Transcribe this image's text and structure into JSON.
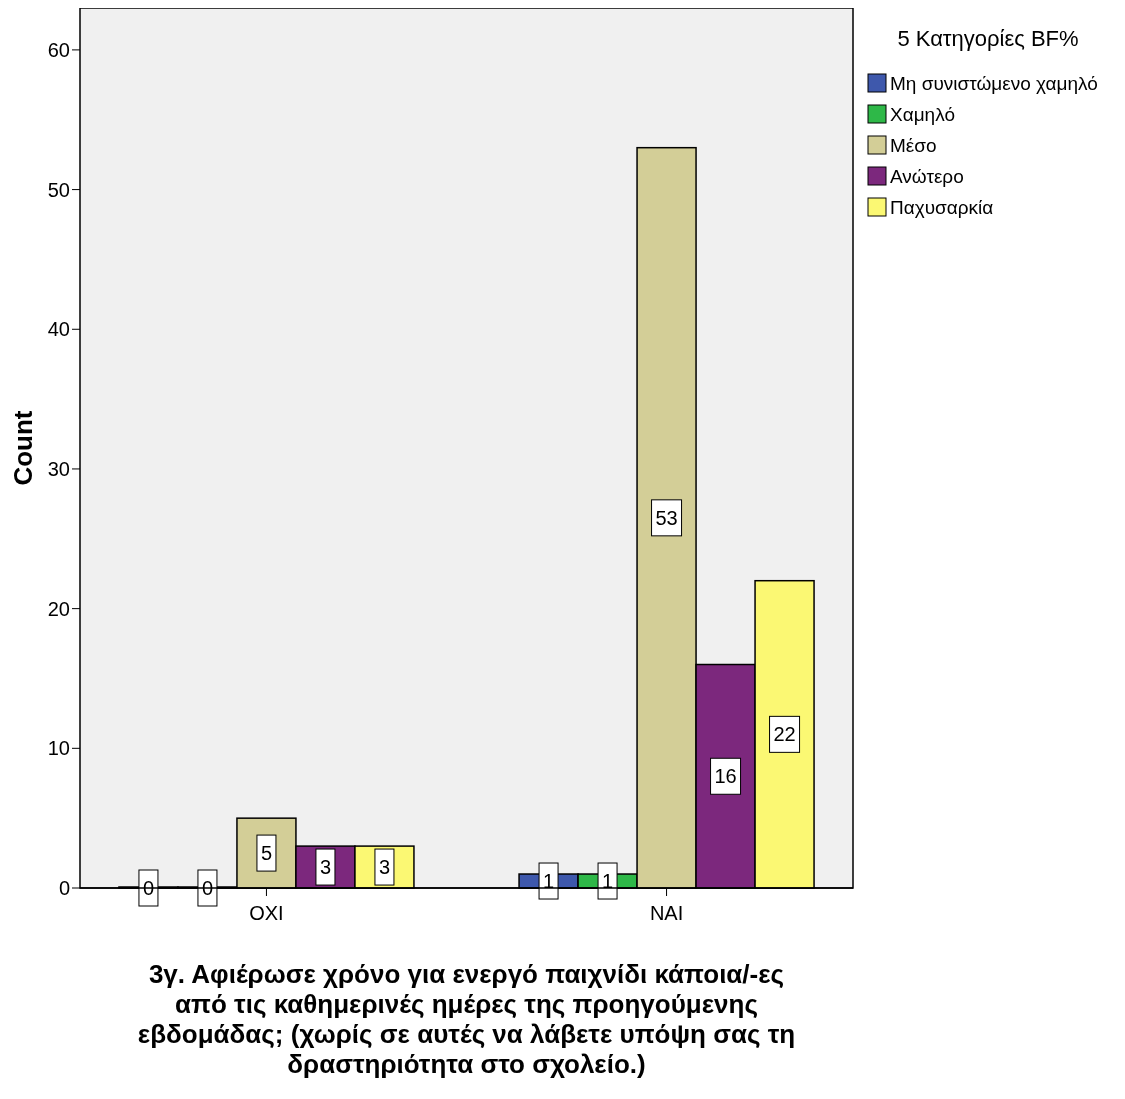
{
  "chart_data": {
    "type": "bar",
    "xlabel": "3γ. Αφιέρωσε χρόνο για ενεργό παιχνίδι κάποια/-ες από τις καθημερινές ημέρες της προηγούμενης εβδομάδας; (χωρίς σε αυτές να λάβετε υπόψη σας τη δραστηριότητα στο σχολείο.)",
    "ylabel": "Count",
    "legend_title": "5 Κατηγορίες BF%",
    "categories": [
      "ΟΧΙ",
      "ΝΑΙ"
    ],
    "series": [
      {
        "name": "Μη συνιστώμενο χαμηλό",
        "color": "#3e58ac",
        "values": [
          0,
          1
        ]
      },
      {
        "name": "Χαμηλό",
        "color": "#2eb848",
        "values": [
          0,
          1
        ]
      },
      {
        "name": "Μέσο",
        "color": "#d3ce97",
        "values": [
          5,
          53
        ]
      },
      {
        "name": "Ανώτερο",
        "color": "#7c287d",
        "values": [
          3,
          16
        ]
      },
      {
        "name": "Παχυσαρκία",
        "color": "#fbf873",
        "values": [
          3,
          22
        ]
      }
    ],
    "ylim": [
      0,
      63
    ],
    "yticks": [
      0,
      10,
      20,
      30,
      40,
      50,
      60
    ],
    "grid": false,
    "legend": "right",
    "data_labels": true
  }
}
